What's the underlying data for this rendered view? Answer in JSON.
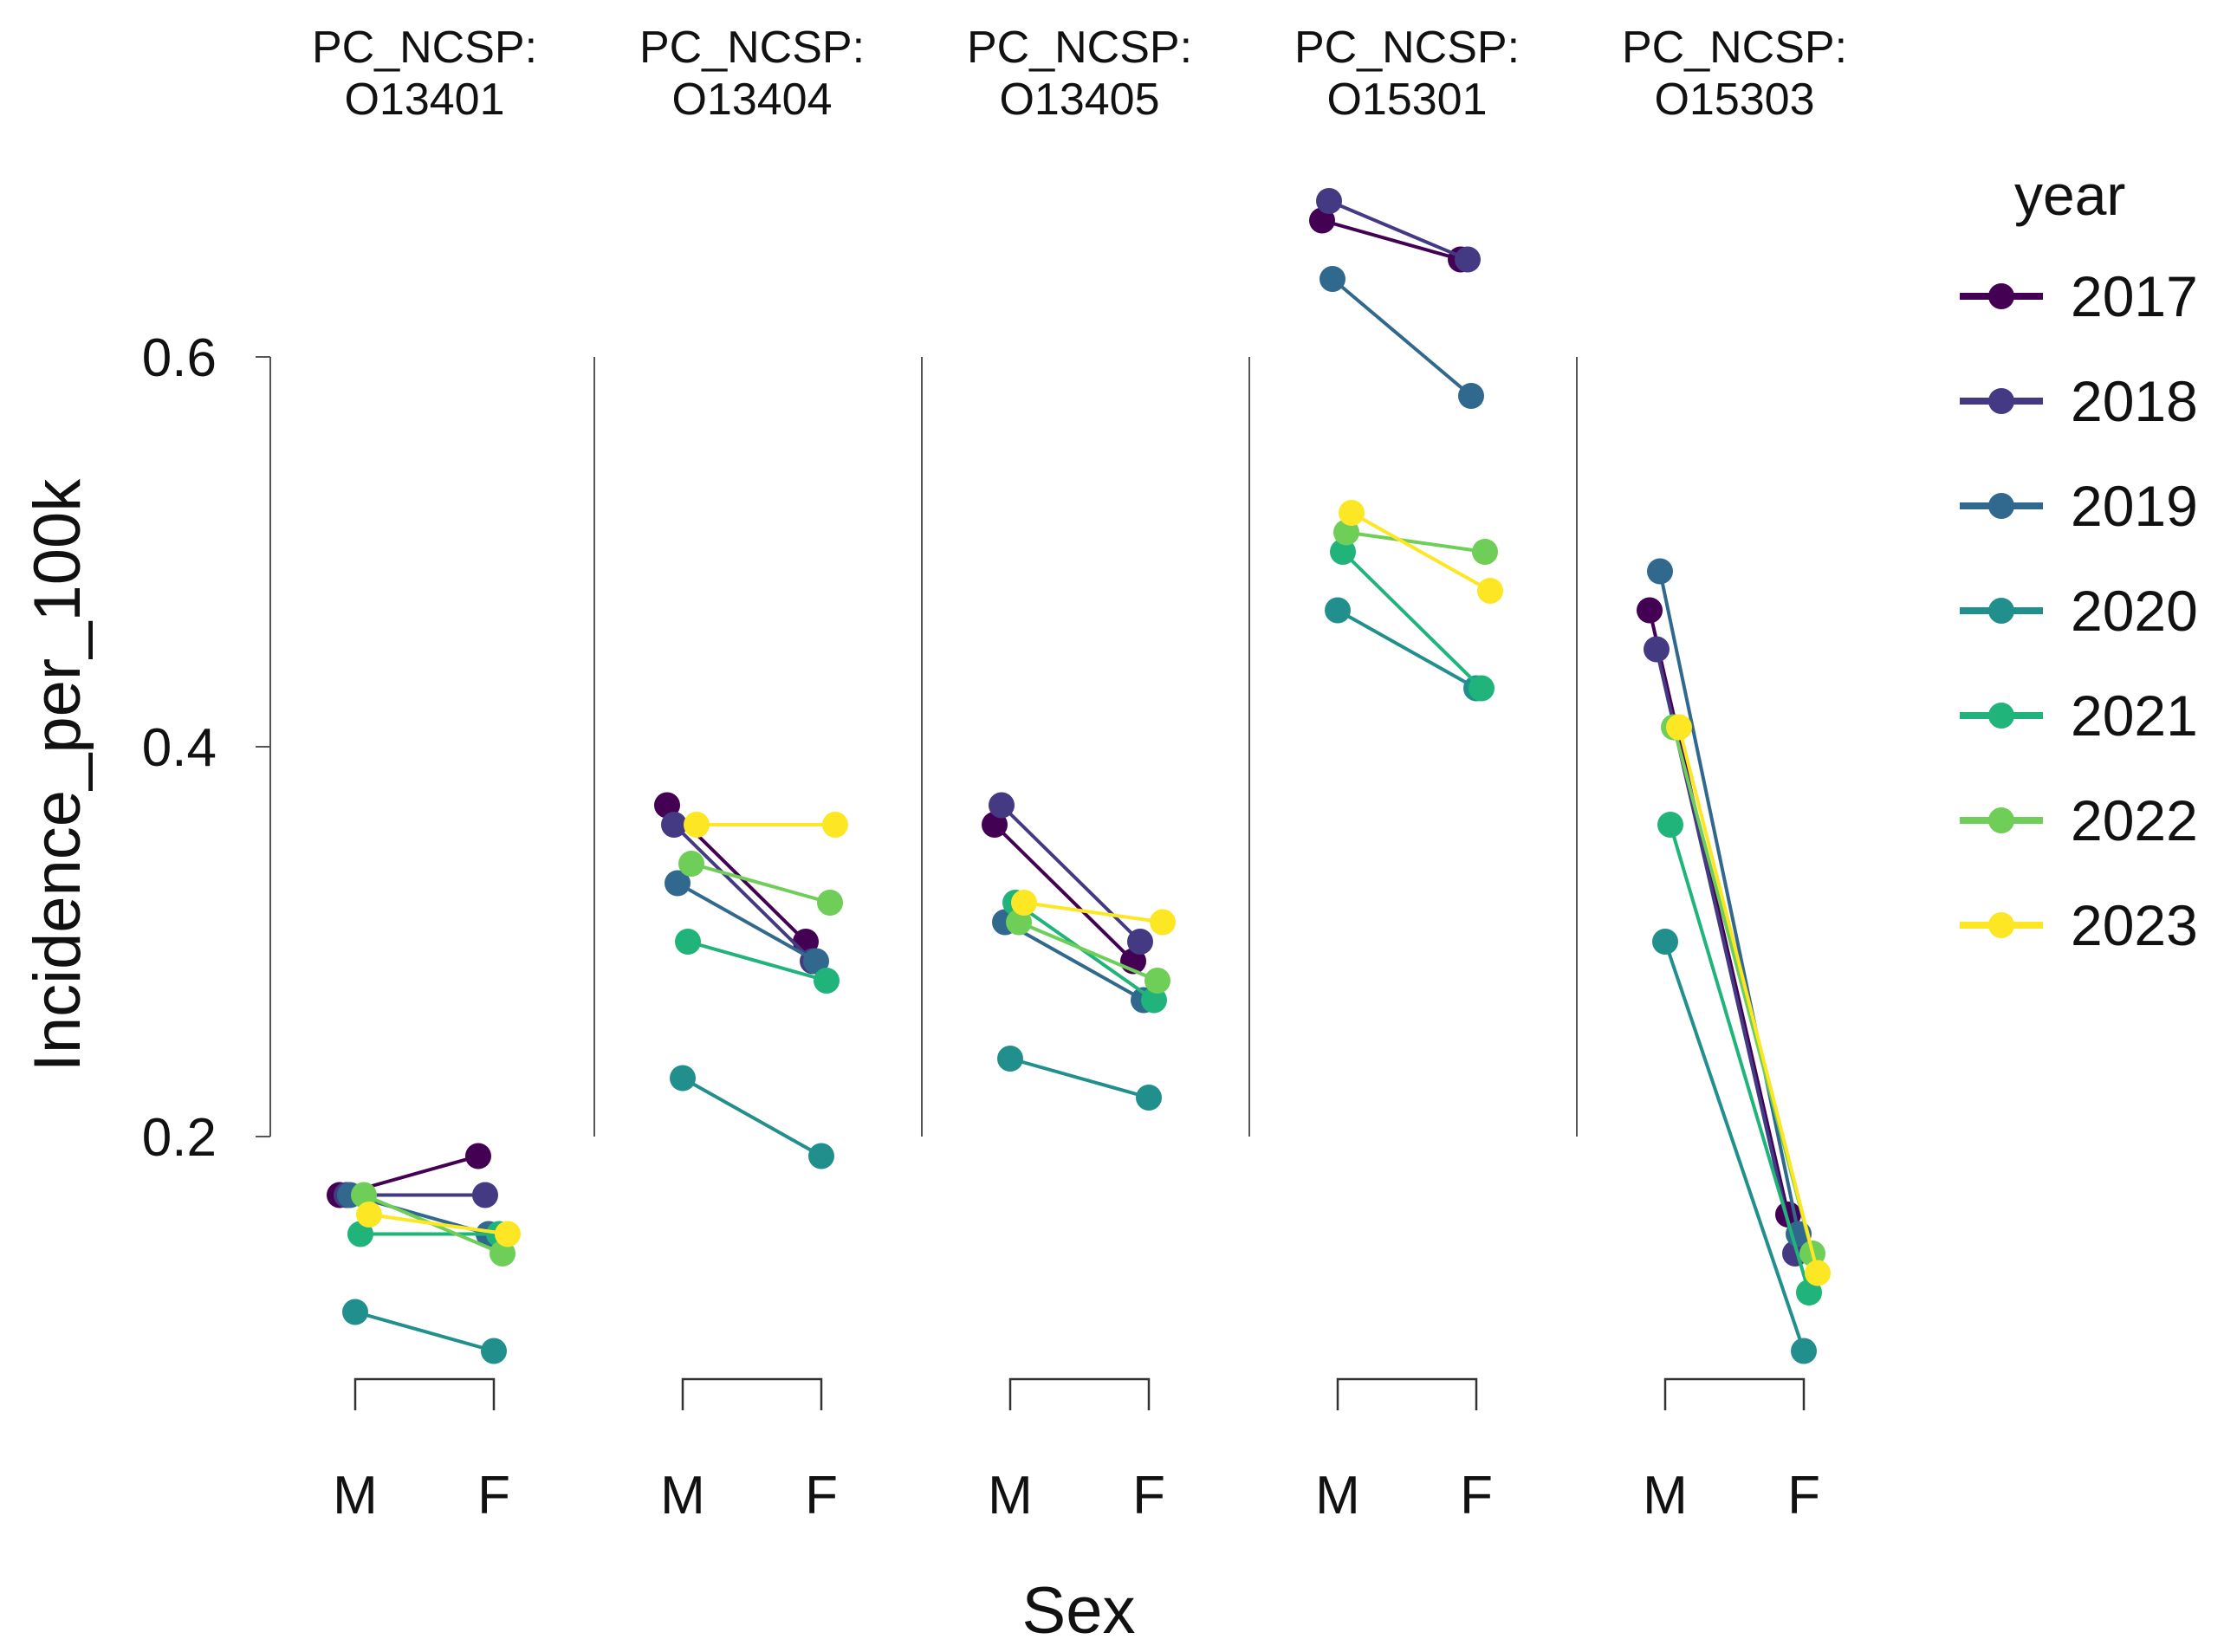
{
  "chart_data": {
    "type": "line",
    "ylabel": "Incidence_per_100k",
    "xlabel": "Sex",
    "x_categories": [
      "M",
      "F"
    ],
    "ylim": [
      0.2,
      0.6
    ],
    "y_ticks": [
      {
        "value": 0.2,
        "label": "0.2"
      },
      {
        "value": 0.4,
        "label": "0.4"
      },
      {
        "value": 0.6,
        "label": "0.6"
      }
    ],
    "legend": {
      "title": "year",
      "position": "right",
      "entries": [
        {
          "year": "2017",
          "color": "#440154"
        },
        {
          "year": "2018",
          "color": "#443a83"
        },
        {
          "year": "2019",
          "color": "#31688e"
        },
        {
          "year": "2020",
          "color": "#21908c"
        },
        {
          "year": "2021",
          "color": "#20b47a"
        },
        {
          "year": "2022",
          "color": "#6ece58"
        },
        {
          "year": "2023",
          "color": "#fde725"
        }
      ]
    },
    "panels": [
      {
        "label_top": "PC_NCSP:",
        "label_bottom": "O13401",
        "series": [
          {
            "year": "2017",
            "M": 0.17,
            "F": 0.19
          },
          {
            "year": "2018",
            "M": 0.17,
            "F": 0.17
          },
          {
            "year": "2019",
            "M": 0.17,
            "F": 0.15
          },
          {
            "year": "2020",
            "M": 0.11,
            "F": 0.09
          },
          {
            "year": "2021",
            "M": 0.15,
            "F": 0.15
          },
          {
            "year": "2022",
            "M": 0.17,
            "F": 0.14
          },
          {
            "year": "2023",
            "M": 0.16,
            "F": 0.15
          }
        ]
      },
      {
        "label_top": "PC_NCSP:",
        "label_bottom": "O13404",
        "series": [
          {
            "year": "2017",
            "M": 0.37,
            "F": 0.3
          },
          {
            "year": "2018",
            "M": 0.36,
            "F": 0.29
          },
          {
            "year": "2019",
            "M": 0.33,
            "F": 0.29
          },
          {
            "year": "2020",
            "M": 0.23,
            "F": 0.19
          },
          {
            "year": "2021",
            "M": 0.3,
            "F": 0.28
          },
          {
            "year": "2022",
            "M": 0.34,
            "F": 0.32
          },
          {
            "year": "2023",
            "M": 0.36,
            "F": 0.36
          }
        ]
      },
      {
        "label_top": "PC_NCSP:",
        "label_bottom": "O13405",
        "series": [
          {
            "year": "2017",
            "M": 0.36,
            "F": 0.29
          },
          {
            "year": "2018",
            "M": 0.37,
            "F": 0.3
          },
          {
            "year": "2019",
            "M": 0.31,
            "F": 0.27
          },
          {
            "year": "2020",
            "M": 0.24,
            "F": 0.22
          },
          {
            "year": "2021",
            "M": 0.32,
            "F": 0.27
          },
          {
            "year": "2022",
            "M": 0.31,
            "F": 0.28
          },
          {
            "year": "2023",
            "M": 0.32,
            "F": 0.31
          }
        ]
      },
      {
        "label_top": "PC_NCSP:",
        "label_bottom": "O15301",
        "series": [
          {
            "year": "2017",
            "M": 0.67,
            "F": 0.65
          },
          {
            "year": "2018",
            "M": 0.68,
            "F": 0.65
          },
          {
            "year": "2019",
            "M": 0.64,
            "F": 0.58
          },
          {
            "year": "2020",
            "M": 0.47,
            "F": 0.43
          },
          {
            "year": "2021",
            "M": 0.5,
            "F": 0.43
          },
          {
            "year": "2022",
            "M": 0.51,
            "F": 0.5
          },
          {
            "year": "2023",
            "M": 0.52,
            "F": 0.48
          }
        ]
      },
      {
        "label_top": "PC_NCSP:",
        "label_bottom": "O15303",
        "series": [
          {
            "year": "2017",
            "M": 0.47,
            "F": 0.16
          },
          {
            "year": "2018",
            "M": 0.45,
            "F": 0.14
          },
          {
            "year": "2019",
            "M": 0.49,
            "F": 0.15
          },
          {
            "year": "2020",
            "M": 0.3,
            "F": 0.09
          },
          {
            "year": "2021",
            "M": 0.36,
            "F": 0.12
          },
          {
            "year": "2022",
            "M": 0.41,
            "F": 0.14
          },
          {
            "year": "2023",
            "M": 0.41,
            "F": 0.13
          }
        ]
      }
    ]
  }
}
